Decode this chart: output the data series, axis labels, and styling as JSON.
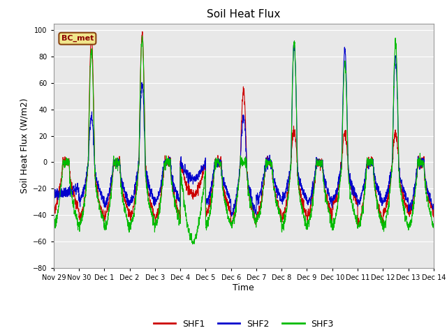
{
  "title": "Soil Heat Flux",
  "xlabel": "Time",
  "ylabel": "Soil Heat Flux (W/m2)",
  "ylim": [
    -80,
    105
  ],
  "yticks": [
    -80,
    -60,
    -40,
    -20,
    0,
    20,
    40,
    60,
    80,
    100
  ],
  "plot_bg_color": "#e8e8e8",
  "fig_bg_color": "#ffffff",
  "line_colors": {
    "SHF1": "#cc0000",
    "SHF2": "#0000cc",
    "SHF3": "#00bb00"
  },
  "legend_label": "BC_met",
  "legend_box_color": "#f0e68c",
  "legend_box_edge": "#8B4513",
  "x_tick_labels": [
    "Nov 29",
    "Nov 30",
    "Dec 1",
    "Dec 2",
    "Dec 3",
    "Dec 4",
    "Dec 5",
    "Dec 6",
    "Dec 7",
    "Dec 8",
    "Dec 9",
    "Dec 10",
    "Dec 11",
    "Dec 12",
    "Dec 13",
    "Dec 14"
  ],
  "n_days": 15,
  "ppd": 144
}
